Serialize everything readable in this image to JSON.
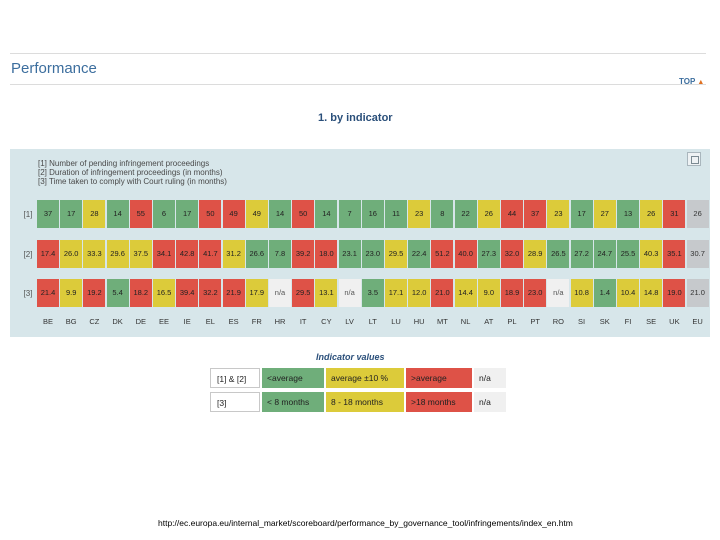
{
  "header": {
    "title": "Performance",
    "top_link": "TOP",
    "subheading": "1. by indicator"
  },
  "legend": {
    "lines": [
      "[1] Number of pending infringement proceedings",
      "[2] Duration of infringement proceedings (in months)",
      "[3] Time taken to comply with Court ruling (in months)"
    ]
  },
  "row_labels": [
    "[1]",
    "[2]",
    "[3]"
  ],
  "countries": [
    "BE",
    "BG",
    "CZ",
    "DK",
    "DE",
    "EE",
    "IE",
    "EL",
    "ES",
    "FR",
    "HR",
    "IT",
    "CY",
    "LV",
    "LT",
    "LU",
    "HU",
    "MT",
    "NL",
    "AT",
    "PL",
    "PT",
    "RO",
    "SI",
    "SK",
    "FI",
    "SE",
    "UK",
    "EU"
  ],
  "rows": [
    {
      "values": [
        "37",
        "17",
        "28",
        "14",
        "55",
        "6",
        "17",
        "50",
        "49",
        "49",
        "14",
        "50",
        "14",
        "7",
        "16",
        "11",
        "23",
        "8",
        "22",
        "26",
        "44",
        "37",
        "23",
        "17",
        "27",
        "13",
        "26",
        "31",
        "26"
      ],
      "colors": [
        "g",
        "g",
        "y",
        "g",
        "r",
        "g",
        "g",
        "r",
        "r",
        "y",
        "g",
        "r",
        "g",
        "g",
        "g",
        "g",
        "y",
        "g",
        "g",
        "y",
        "r",
        "r",
        "y",
        "g",
        "y",
        "g",
        "y",
        "r",
        "eu"
      ]
    },
    {
      "values": [
        "17.4",
        "26.0",
        "33.3",
        "29.6",
        "37.5",
        "34.1",
        "42.8",
        "41.7",
        "31.2",
        "26.6",
        "7.8",
        "39.2",
        "18.0",
        "23.1",
        "23.0",
        "29.5",
        "22.4",
        "51.2",
        "40.0",
        "27.3",
        "32.0",
        "28.9",
        "26.5",
        "27.2",
        "24.7",
        "25.5",
        "40.3",
        "35.1",
        "30.7"
      ],
      "colors": [
        "r",
        "y",
        "y",
        "y",
        "y",
        "r",
        "r",
        "r",
        "y",
        "g",
        "g",
        "r",
        "r",
        "g",
        "g",
        "y",
        "g",
        "r",
        "r",
        "g",
        "r",
        "y",
        "g",
        "g",
        "g",
        "g",
        "y",
        "r",
        "eu"
      ]
    },
    {
      "values": [
        "21.4",
        "9.9",
        "19.2",
        "5.4",
        "18.2",
        "16.5",
        "39.4",
        "32.2",
        "21.9",
        "17.9",
        "n/a",
        "29.5",
        "13.1",
        "n/a",
        "3.5",
        "17.1",
        "12.0",
        "21.0",
        "14.4",
        "9.0",
        "18.9",
        "23.0",
        "n/a",
        "10.8",
        "1.4",
        "10.4",
        "14.8",
        "19.0",
        "21.0"
      ],
      "colors": [
        "r",
        "y",
        "r",
        "g",
        "r",
        "y",
        "r",
        "r",
        "r",
        "y",
        "na",
        "r",
        "y",
        "na",
        "g",
        "y",
        "y",
        "r",
        "y",
        "y",
        "r",
        "r",
        "na",
        "y",
        "g",
        "y",
        "y",
        "r",
        "eu"
      ]
    }
  ],
  "indicator_values": {
    "title": "Indicator values",
    "rows": [
      {
        "label": "[1] & [2]",
        "cells": [
          "<average",
          "average ±10 %",
          ">average",
          "n/a"
        ]
      },
      {
        "label": "[3]",
        "cells": [
          "< 8 months",
          "8 - 18 months",
          ">18 months",
          "n/a"
        ]
      }
    ]
  },
  "footer": {
    "url": "http://ec.europa.eu/internal_market/scoreboard/performance_by_governance_tool/infringements/index_en.htm"
  },
  "palette": {
    "green": "#6fae7a",
    "yellow": "#dccb3a",
    "red": "#de5247",
    "na": "#f0f0f0",
    "eu": "#c6c9cc"
  }
}
